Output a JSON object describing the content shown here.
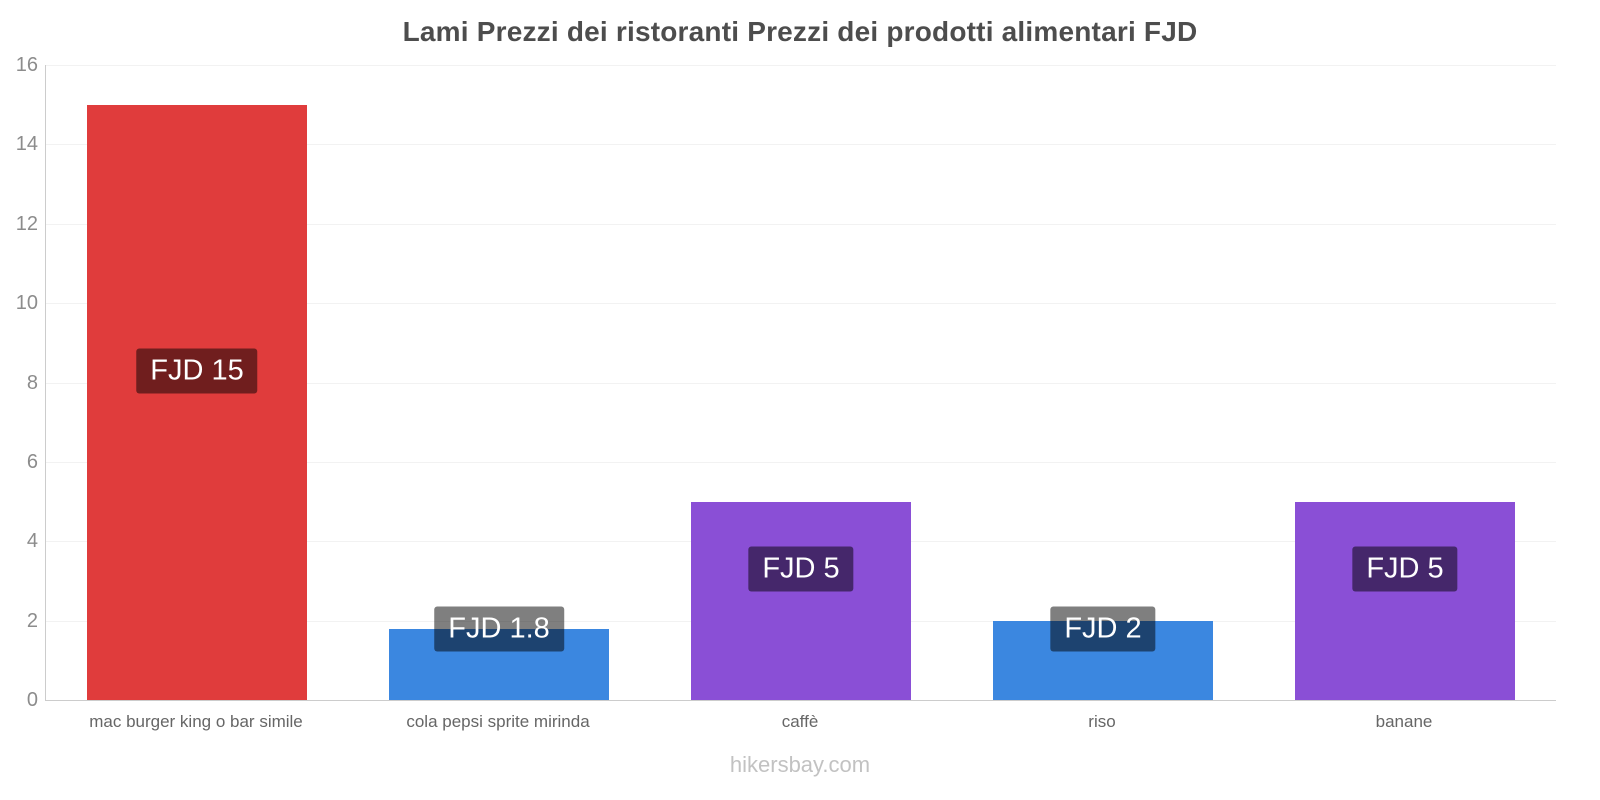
{
  "title": "Lami Prezzi dei ristoranti Prezzi dei prodotti alimentari FJD",
  "footer": "hikersbay.com",
  "colors": {
    "red_bar": "#e03c3c",
    "blue_bar": "#3b87e0",
    "purple_bar": "#8a4fd6",
    "badge_overlay": "rgba(0,0,0,0.5)",
    "axis_line": "#cccccc",
    "grid_line": "#f2f2f2"
  },
  "chart_data": {
    "type": "bar",
    "title": "Lami Prezzi dei ristoranti Prezzi dei prodotti alimentari FJD",
    "categories": [
      "mac burger king o bar simile",
      "cola pepsi sprite mirinda",
      "caffè",
      "riso",
      "banane"
    ],
    "values": [
      15,
      1.8,
      5,
      2,
      5
    ],
    "value_labels": [
      "FJD 15",
      "FJD 1.8",
      "FJD 5",
      "FJD 2",
      "FJD 5"
    ],
    "bar_colors": [
      "#e03c3c",
      "#3b87e0",
      "#8a4fd6",
      "#3b87e0",
      "#8a4fd6"
    ],
    "label_positions": [
      8.3,
      1.8,
      3.3,
      1.8,
      3.3
    ],
    "currency": "FJD",
    "xlabel": "",
    "ylabel": "",
    "ylim": [
      0,
      16
    ],
    "yticks": [
      0,
      2,
      4,
      6,
      8,
      10,
      12,
      14,
      16
    ],
    "grid": true,
    "legend": "none"
  }
}
